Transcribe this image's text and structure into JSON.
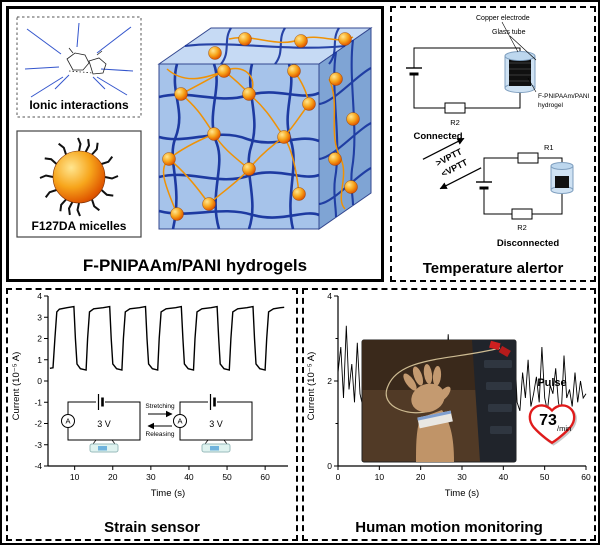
{
  "figure": {
    "hydrogel_panel": {
      "title": "F-PNIPAAm/PANI hydrogels",
      "ionic_box_label": "Ionic interactions",
      "micelle_box_label": "F127DA micelles"
    },
    "alertor_panel": {
      "title": "Temperature alertor",
      "copper_electrode": "Copper electrode",
      "glass_tube": "Glass tube",
      "hydrogel_line1": "F-PNIPAAm/PANI",
      "hydrogel_line2": "hydrogel",
      "connected": "Connected",
      "disconnected": "Disconnected",
      "r1": "R1",
      "r2": "R2",
      "above_vptt": ">VPTT",
      "below_vptt": "<VPTT"
    },
    "strain_panel": {
      "title": "Strain sensor",
      "voltage": "3 V",
      "ammeter": "A",
      "stretching": "Stretching",
      "releasing": "Releasing"
    },
    "motion_panel": {
      "title": "Human motion monitoring",
      "pulse_label": "Pulse",
      "pulse_value": "73",
      "pulse_unit": "/min"
    }
  },
  "colors": {
    "network_blue": "#16339e",
    "network_orange": "#ef9205",
    "cube_front": "#a6c3ea",
    "cube_top": "#c6daf4",
    "cube_right": "#7fa4d4",
    "heart_red": "#e01b1b",
    "hydrogel_cyan": "#dff3f0"
  },
  "chart_data": [
    {
      "id": "strain",
      "type": "line",
      "title": "",
      "xlabel": "Time (s)",
      "ylabel": "Current (10⁻⁵ A)",
      "xlim": [
        3,
        66
      ],
      "ylim": [
        -4,
        4
      ],
      "xticks": [
        10,
        20,
        30,
        40,
        50,
        60
      ],
      "yticks": [
        -4,
        -3,
        -2,
        -1,
        0,
        1,
        2,
        3,
        4
      ],
      "yticks_minor": [],
      "points": [
        [
          3.5,
          0.6
        ],
        [
          4.3,
          0.62
        ],
        [
          4.8,
          2.0
        ],
        [
          5.3,
          3.25
        ],
        [
          6.0,
          3.38
        ],
        [
          8.0,
          3.45
        ],
        [
          9.8,
          3.5
        ],
        [
          10.2,
          2.0
        ],
        [
          10.6,
          0.8
        ],
        [
          11.5,
          0.58
        ],
        [
          13.0,
          0.52
        ],
        [
          13.4,
          2.0
        ],
        [
          13.9,
          3.25
        ],
        [
          15.0,
          3.4
        ],
        [
          17.5,
          3.45
        ],
        [
          19.2,
          3.5
        ],
        [
          19.6,
          2.0
        ],
        [
          20.0,
          0.8
        ],
        [
          21.0,
          0.58
        ],
        [
          22.4,
          0.52
        ],
        [
          22.8,
          2.0
        ],
        [
          23.3,
          3.25
        ],
        [
          24.5,
          3.4
        ],
        [
          27.0,
          3.45
        ],
        [
          28.6,
          3.5
        ],
        [
          29.0,
          2.0
        ],
        [
          29.4,
          0.8
        ],
        [
          30.4,
          0.58
        ],
        [
          31.8,
          0.52
        ],
        [
          32.2,
          2.0
        ],
        [
          32.7,
          3.25
        ],
        [
          34.0,
          3.4
        ],
        [
          36.5,
          3.45
        ],
        [
          38.0,
          3.5
        ],
        [
          38.4,
          2.0
        ],
        [
          38.8,
          0.8
        ],
        [
          39.8,
          0.58
        ],
        [
          41.2,
          0.52
        ],
        [
          41.6,
          2.0
        ],
        [
          42.1,
          3.25
        ],
        [
          43.4,
          3.4
        ],
        [
          45.8,
          3.45
        ],
        [
          47.4,
          3.5
        ],
        [
          47.8,
          2.0
        ],
        [
          48.2,
          0.8
        ],
        [
          49.2,
          0.58
        ],
        [
          50.6,
          0.52
        ],
        [
          51.0,
          2.0
        ],
        [
          51.5,
          3.25
        ],
        [
          52.8,
          3.4
        ],
        [
          55.2,
          3.45
        ],
        [
          56.8,
          3.5
        ],
        [
          57.2,
          2.0
        ],
        [
          57.6,
          0.8
        ],
        [
          58.6,
          0.58
        ],
        [
          60.0,
          0.52
        ],
        [
          60.4,
          2.0
        ],
        [
          60.9,
          3.25
        ],
        [
          62.2,
          3.4
        ],
        [
          64.0,
          3.45
        ],
        [
          65.0,
          3.47
        ]
      ]
    },
    {
      "id": "motion",
      "type": "line",
      "title": "",
      "xlabel": "Time (s)",
      "ylabel": "Current (10⁻⁵ A)",
      "xlim": [
        0,
        60
      ],
      "ylim": [
        0,
        4
      ],
      "xticks": [
        0,
        10,
        20,
        30,
        40,
        50,
        60
      ],
      "yticks": [
        0,
        2,
        4
      ],
      "yticks_minor": [
        1,
        3
      ],
      "values": [
        2.2,
        2.8,
        1.6,
        3.3,
        1.8,
        2.4,
        1.5,
        2.9,
        1.7,
        1.4,
        2.1,
        1.6,
        2.6,
        1.5,
        1.9,
        1.3,
        2.4,
        1.7,
        1.4,
        2.0,
        1.5,
        2.8,
        1.6,
        1.3,
        2.2,
        1.7,
        2.5,
        1.4,
        1.8,
        1.5,
        2.9,
        1.6,
        1.2,
        2.1,
        1.7,
        2.4,
        1.5,
        1.3,
        2.0,
        1.6,
        3.1,
        1.7,
        1.4,
        2.2,
        1.5,
        2.6,
        1.6,
        1.2,
        1.9,
        1.5,
        2.3,
        1.7,
        1.3,
        2.1,
        1.6,
        2.7,
        1.4,
        1.8,
        1.5,
        2.4,
        1.6,
        1.2,
        2.0,
        1.7,
        2.9,
        1.5,
        1.3,
        2.2,
        1.6,
        2.5,
        1.4,
        1.7,
        2.1,
        1.5,
        2.8,
        1.6,
        1.3,
        1.9,
        1.7,
        2.3,
        1.5,
        1.2,
        2.6,
        1.6,
        1.8,
        1.4,
        2.2,
        1.5,
        2.0,
        1.6,
        1.7
      ]
    }
  ]
}
